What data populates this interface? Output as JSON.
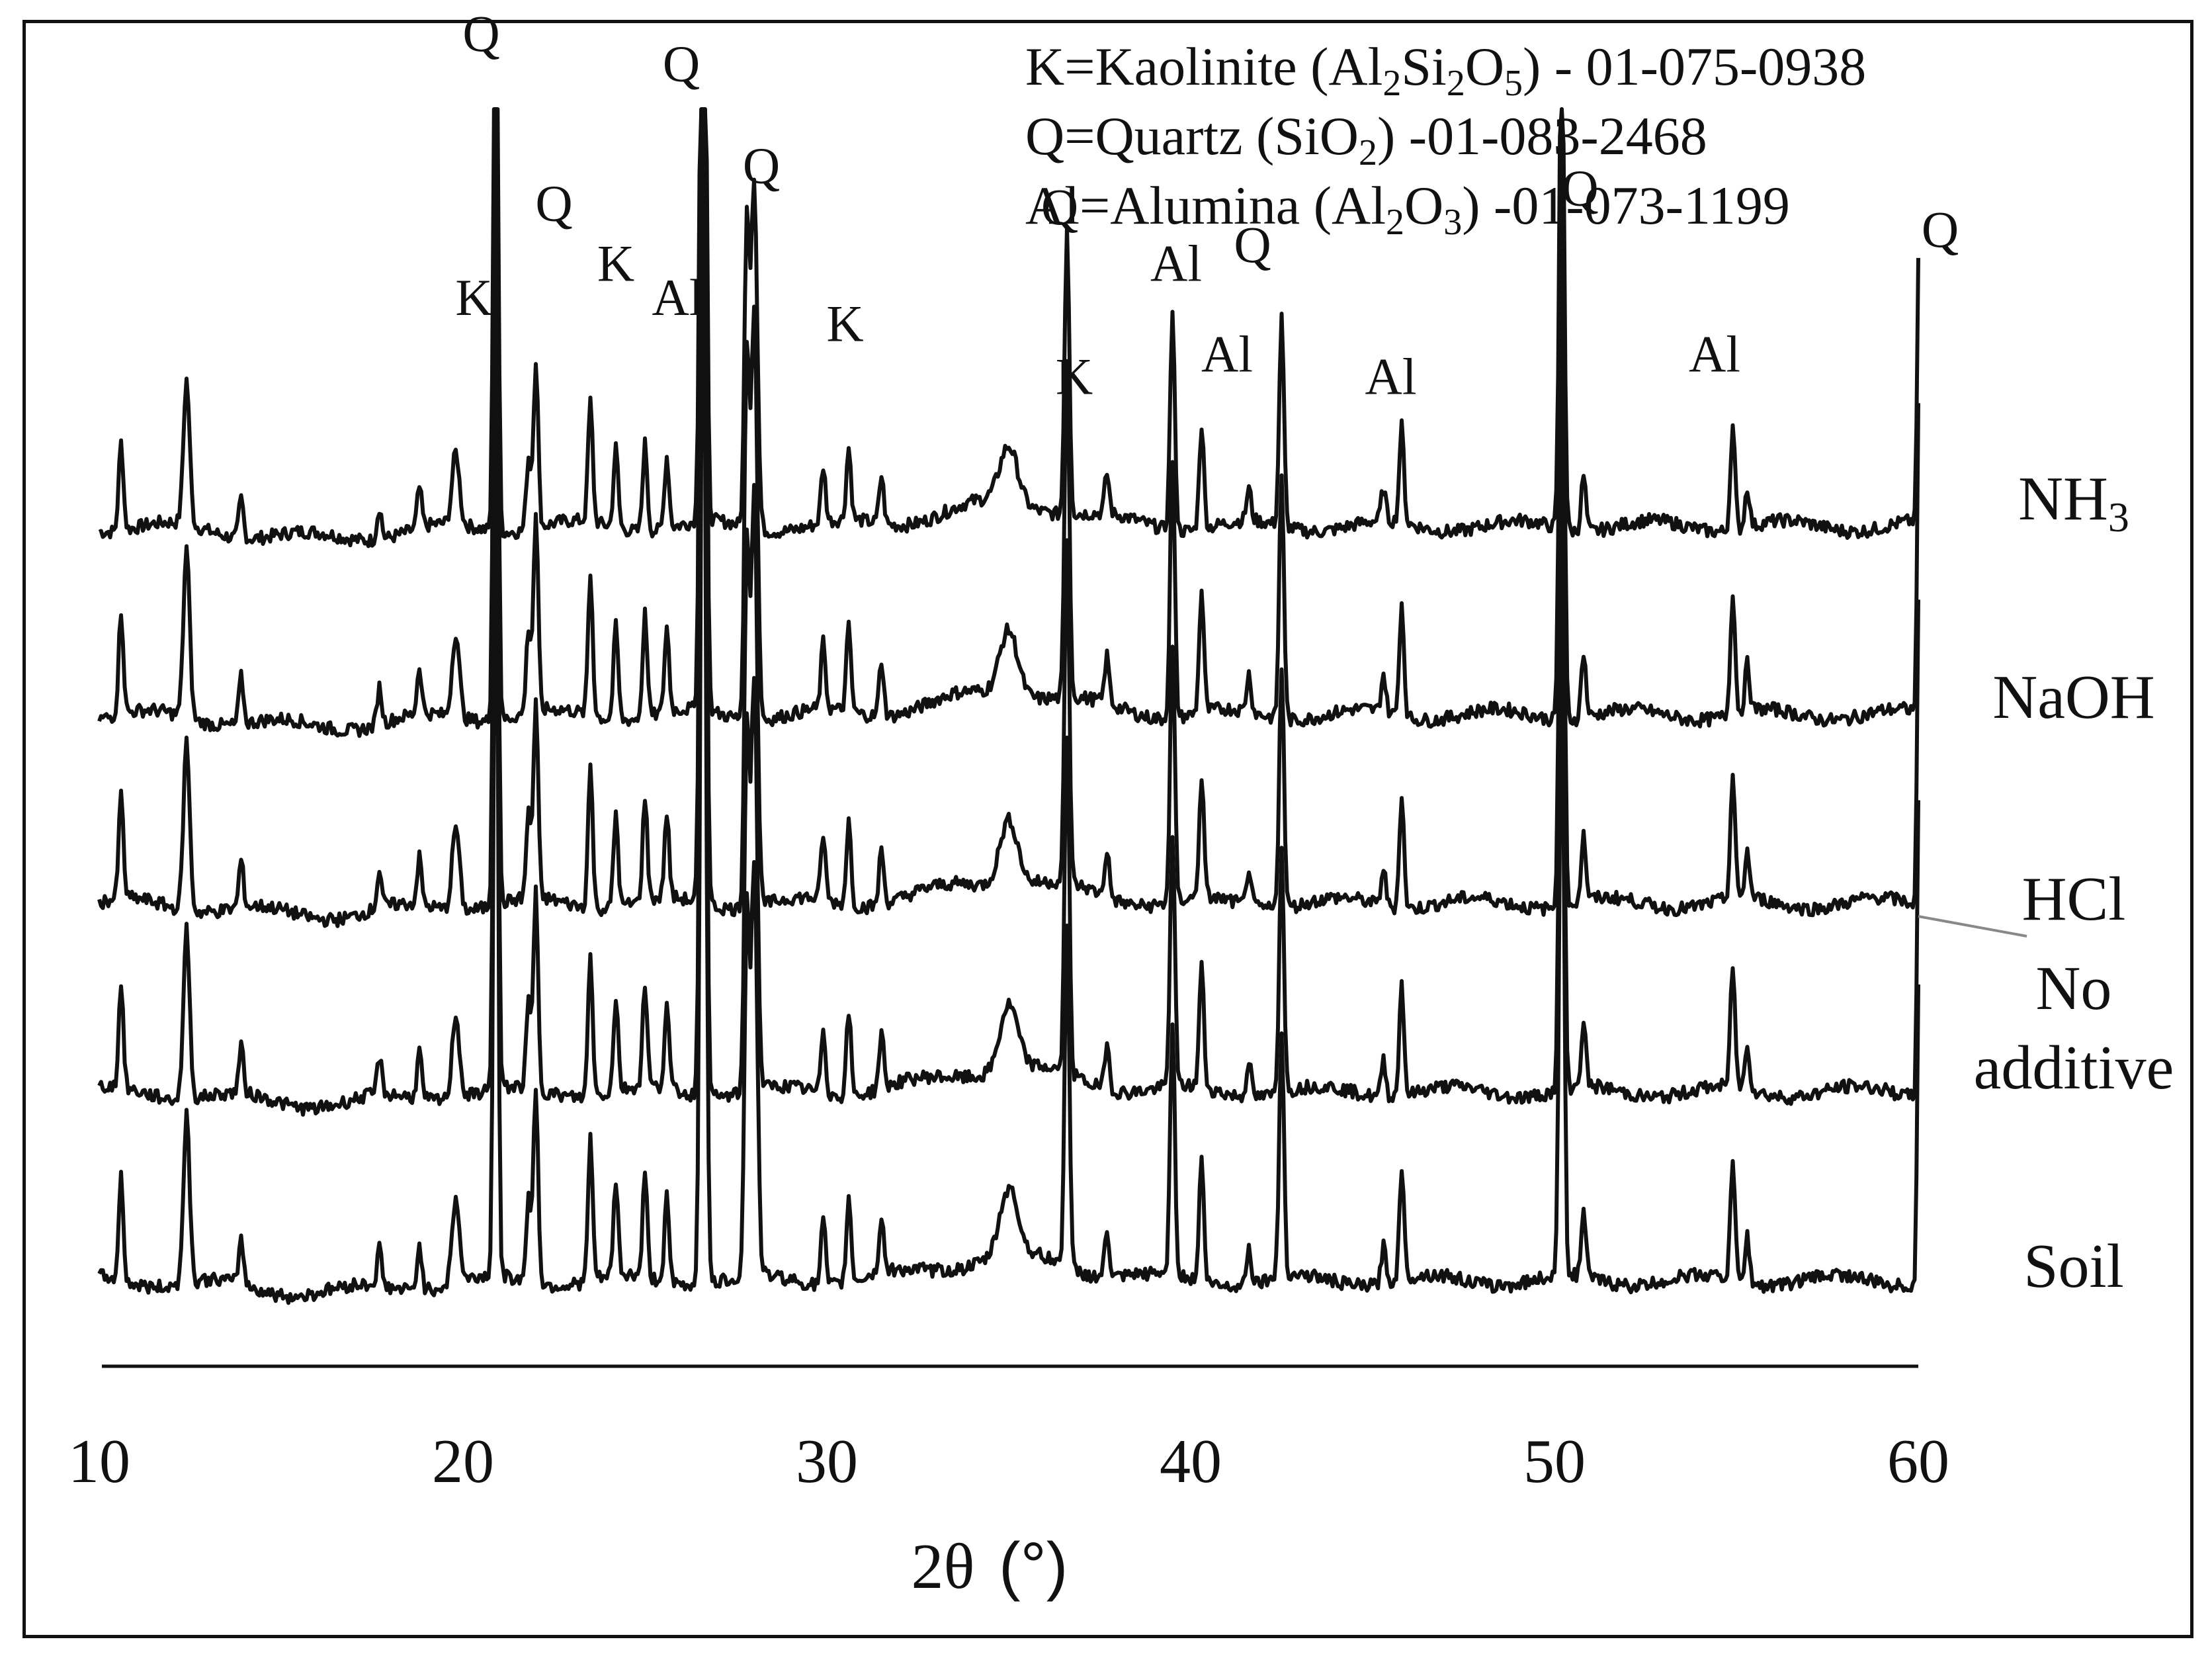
{
  "chart_data": {
    "type": "line",
    "title": "",
    "xlabel_main": "2θ",
    "xlabel_unit": "(°)",
    "ylabel": "",
    "xlim": [
      10,
      60
    ],
    "xticks": [
      "10",
      "20",
      "30",
      "40",
      "50",
      "60"
    ],
    "grid": false,
    "legend": [
      {
        "pre": "K=Kaolinite (Al",
        "parts": [
          [
            "2",
            "Si"
          ],
          [
            "2",
            "O"
          ],
          [
            "5",
            ") - 01-075-0938"
          ]
        ]
      },
      {
        "pre": "Q=Quartz (SiO",
        "parts": [
          [
            "2",
            ") -01-083-2468"
          ]
        ]
      },
      {
        "pre": "Al=Alumina (Al",
        "parts": [
          [
            "2",
            "O"
          ],
          [
            "3",
            ") -01-073-1199"
          ]
        ]
      }
    ],
    "series": [
      {
        "name": "NH",
        "sub": "3",
        "baseline": 0.0
      },
      {
        "name": "NaOH",
        "sub": "",
        "baseline": -1.0
      },
      {
        "name": "HCl",
        "sub": "",
        "baseline": -2.0
      },
      {
        "name": "No",
        "name2": "additive",
        "sub": "",
        "baseline": -3.0
      },
      {
        "name": "Soil",
        "sub": "",
        "baseline": -4.0
      }
    ],
    "peaks_2theta": [
      10.6,
      12.4,
      13.9,
      17.7,
      18.8,
      19.8,
      20.9,
      21.8,
      22.0,
      23.5,
      24.2,
      25.0,
      25.6,
      26.6,
      27.8,
      28.0,
      29.9,
      30.6,
      31.5,
      35.0,
      36.6,
      37.7,
      39.5,
      40.3,
      41.6,
      42.5,
      45.3,
      45.8,
      50.2,
      50.8,
      54.9,
      55.3,
      60.0
    ],
    "phase_labels": [
      {
        "text": "K",
        "x": 20.3,
        "y": 1.12
      },
      {
        "text": "Q",
        "x": 20.5,
        "y": 2.52
      },
      {
        "text": "Q",
        "x": 22.5,
        "y": 1.62
      },
      {
        "text": "K",
        "x": 24.2,
        "y": 1.3
      },
      {
        "text": "Al",
        "x": 25.9,
        "y": 1.12
      },
      {
        "text": "Q",
        "x": 26.0,
        "y": 2.36
      },
      {
        "text": "Q",
        "x": 28.2,
        "y": 1.82
      },
      {
        "text": "K",
        "x": 30.5,
        "y": 0.98
      },
      {
        "text": "Q",
        "x": 36.4,
        "y": 1.6
      },
      {
        "text": "K",
        "x": 36.8,
        "y": 0.7
      },
      {
        "text": "Al",
        "x": 39.6,
        "y": 1.3
      },
      {
        "text": "Al",
        "x": 41.0,
        "y": 0.82
      },
      {
        "text": "Q",
        "x": 41.7,
        "y": 1.4
      },
      {
        "text": "Al",
        "x": 45.5,
        "y": 0.7
      },
      {
        "text": "Q",
        "x": 50.7,
        "y": 1.7
      },
      {
        "text": "Al",
        "x": 54.4,
        "y": 0.82
      },
      {
        "text": "Q",
        "x": 60.6,
        "y": 1.48
      }
    ]
  }
}
